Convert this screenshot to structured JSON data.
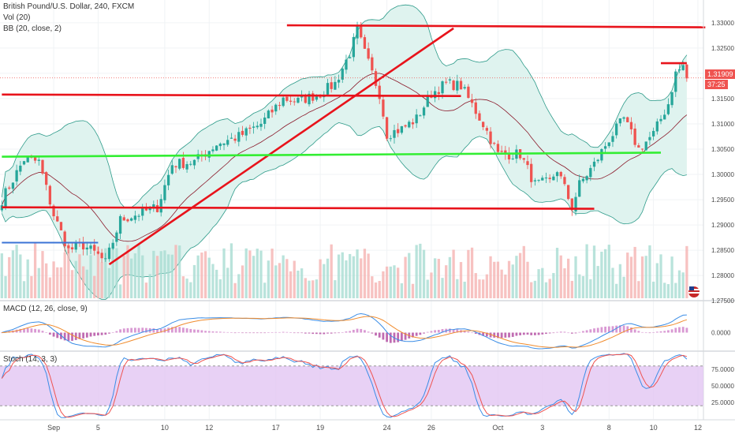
{
  "header": {
    "title": "British Pound/U.S. Dollar, 240, FXCM",
    "vol_label": "Vol (20)",
    "bb_label": "BB (20, close, 2)",
    "macd_label": "MACD (12, 26, close, 9)",
    "stoch_label": "Stoch (14, 3, 3)"
  },
  "price_tag": {
    "value": "1.31909",
    "timer": "37:25",
    "color": "#ef5350"
  },
  "colors": {
    "up": "#26a69a",
    "down": "#ef5350",
    "bb_fill": "#dff3ef",
    "bb_line": "#2e9b8a",
    "basis": "#8b1a2b",
    "red_lines": "#e8131b",
    "green_line": "#33ee33",
    "blue_line": "#3b73d6",
    "macd": "#3b8de6",
    "signal": "#f08c2e",
    "stoch_k": "#3b8de6",
    "stoch_d": "#ef5350",
    "stoch_band": "#e2c6f2"
  },
  "chart_data": [
    {
      "type": "candlestick",
      "title": "British Pound/U.S. Dollar, 240, FXCM",
      "ylim": [
        1.2755,
        1.3345
      ],
      "y_ticks": [
        "1.33000",
        "1.32500",
        "1.32000",
        "1.31500",
        "1.31000",
        "1.30500",
        "1.30000",
        "1.29500",
        "1.29000",
        "1.28500",
        "1.28000",
        "1.27500"
      ],
      "x_ticks": [
        {
          "label": "Sep",
          "bar": 14
        },
        {
          "label": "5",
          "bar": 26
        },
        {
          "label": "10",
          "bar": 44
        },
        {
          "label": "12",
          "bar": 56
        },
        {
          "label": "17",
          "bar": 74
        },
        {
          "label": "19",
          "bar": 86
        },
        {
          "label": "24",
          "bar": 104
        },
        {
          "label": "26",
          "bar": 116
        },
        {
          "label": "Oct",
          "bar": 134
        },
        {
          "label": "3",
          "bar": 146
        },
        {
          "label": "8",
          "bar": 164
        },
        {
          "label": "10",
          "bar": 176
        },
        {
          "label": "12",
          "bar": 188
        }
      ],
      "trend_lines": [
        {
          "color": "red",
          "from": [
            77,
            1.3295
          ],
          "to": [
            190,
            1.3291
          ]
        },
        {
          "color": "red",
          "from": [
            0,
            1.3158
          ],
          "to": [
            124,
            1.3155
          ]
        },
        {
          "color": "red",
          "from": [
            0,
            1.2935
          ],
          "to": [
            160,
            1.2932
          ]
        },
        {
          "color": "red",
          "from": [
            29,
            1.2822
          ],
          "to": [
            122,
            1.3289
          ]
        },
        {
          "color": "red",
          "from": [
            178,
            1.322
          ],
          "to": [
            185,
            1.322
          ]
        },
        {
          "color": "green",
          "from": [
            0,
            1.3035
          ],
          "to": [
            178,
            1.3043
          ]
        },
        {
          "color": "blue",
          "from": [
            0,
            1.2865
          ],
          "to": [
            26,
            1.2865
          ]
        }
      ],
      "anchors": [
        [
          0,
          1.295
        ],
        [
          6,
          1.303
        ],
        [
          10,
          1.3025
        ],
        [
          14,
          1.292
        ],
        [
          18,
          1.285
        ],
        [
          22,
          1.286
        ],
        [
          26,
          1.284
        ],
        [
          28,
          1.2825
        ],
        [
          32,
          1.291
        ],
        [
          38,
          1.2925
        ],
        [
          42,
          1.2935
        ],
        [
          46,
          1.302
        ],
        [
          52,
          1.3025
        ],
        [
          58,
          1.306
        ],
        [
          64,
          1.3075
        ],
        [
          70,
          1.31
        ],
        [
          76,
          1.315
        ],
        [
          80,
          1.3145
        ],
        [
          86,
          1.316
        ],
        [
          90,
          1.318
        ],
        [
          94,
          1.324
        ],
        [
          96,
          1.3285
        ],
        [
          98,
          1.324
        ],
        [
          102,
          1.316
        ],
        [
          104,
          1.308
        ],
        [
          108,
          1.309
        ],
        [
          112,
          1.311
        ],
        [
          116,
          1.316
        ],
        [
          120,
          1.318
        ],
        [
          124,
          1.3175
        ],
        [
          126,
          1.315
        ],
        [
          130,
          1.31
        ],
        [
          134,
          1.304
        ],
        [
          140,
          1.304
        ],
        [
          144,
          1.298
        ],
        [
          148,
          1.2985
        ],
        [
          150,
          1.301
        ],
        [
          154,
          1.2935
        ],
        [
          156,
          1.298
        ],
        [
          160,
          1.302
        ],
        [
          164,
          1.307
        ],
        [
          168,
          1.311
        ],
        [
          172,
          1.305
        ],
        [
          176,
          1.308
        ],
        [
          180,
          1.314
        ],
        [
          182,
          1.32
        ],
        [
          184,
          1.3215
        ],
        [
          185,
          1.319
        ]
      ]
    },
    {
      "type": "line",
      "title": "MACD (12, 26, close, 9)",
      "y_ticks": [
        "0.0000"
      ],
      "series": [
        {
          "name": "MACD"
        },
        {
          "name": "Signal"
        },
        {
          "name": "Histogram"
        }
      ]
    },
    {
      "type": "line",
      "title": "Stoch (14, 3, 3)",
      "ylim": [
        0,
        100
      ],
      "y_ticks": [
        "75.0000",
        "50.0000",
        "25.0000"
      ],
      "bands": [
        20,
        80
      ],
      "series": [
        {
          "name": "%K"
        },
        {
          "name": "%D"
        }
      ]
    }
  ]
}
